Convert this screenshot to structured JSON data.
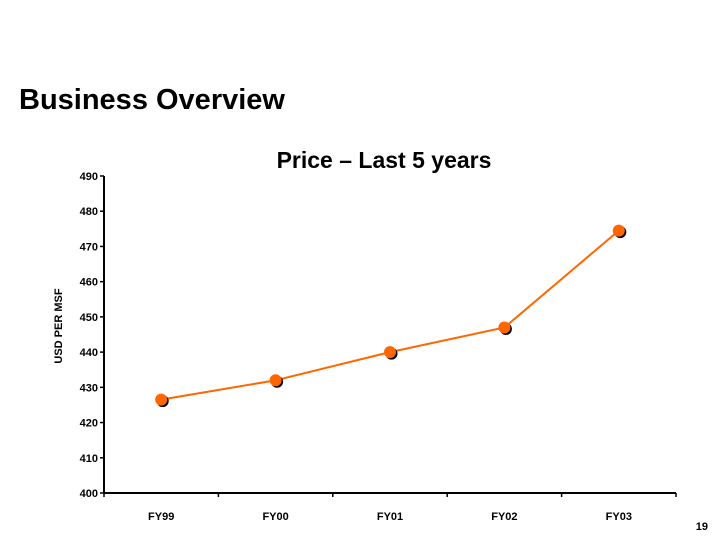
{
  "slide": {
    "title": "Business Overview",
    "page_number": "19"
  },
  "chart_data": {
    "type": "line",
    "title": "Price – Last 5 years",
    "xlabel": "",
    "ylabel": "USD PER MSF",
    "categories": [
      "FY99",
      "FY00",
      "FY01",
      "FY02",
      "FY03"
    ],
    "series": [
      {
        "name": "Price",
        "values": [
          426.5,
          432,
          440,
          447,
          474.5
        ],
        "color": "#FF6600"
      }
    ],
    "ylim": [
      400,
      490
    ],
    "yticks": [
      400,
      410,
      420,
      430,
      440,
      450,
      460,
      470,
      480,
      490
    ],
    "grid": false,
    "legend": "none"
  }
}
